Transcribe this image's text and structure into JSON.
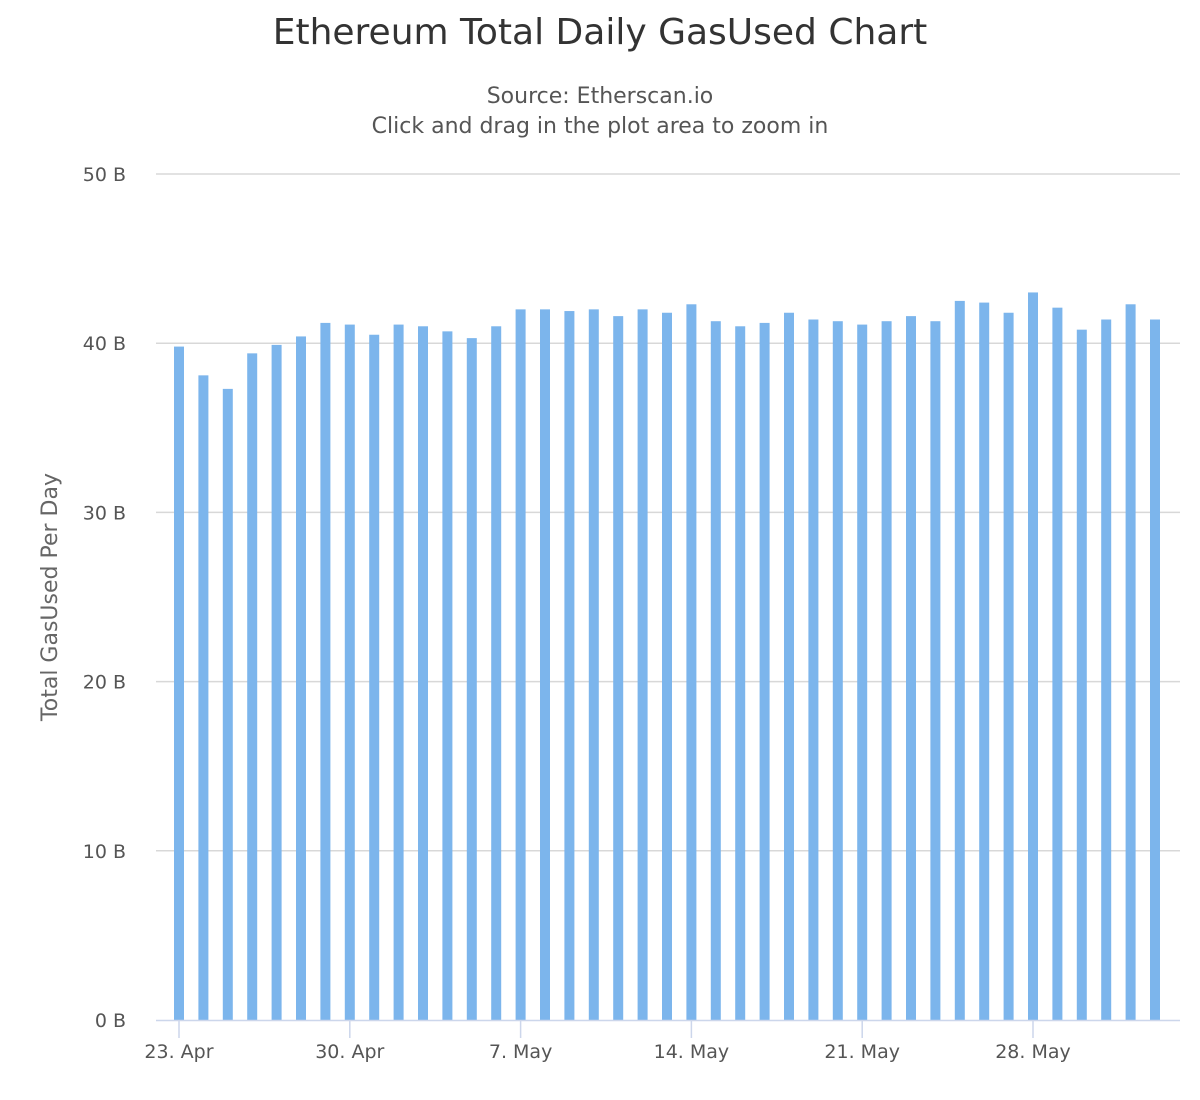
{
  "chart_data": {
    "type": "bar",
    "title": "Ethereum Total Daily GasUsed Chart",
    "subtitle": "Source: Etherscan.io",
    "subtitle_hint": "Click and drag in the plot area to zoom in",
    "ylabel": "Total GasUsed Per Day",
    "xlabel": "",
    "ylim": [
      0,
      50
    ],
    "y_unit_suffix": " B",
    "y_ticks": [
      "0 B",
      "10 B",
      "20 B",
      "30 B",
      "40 B",
      "50 B"
    ],
    "y_tick_values": [
      0,
      10,
      20,
      30,
      40,
      50
    ],
    "x_ticks": [
      "23. Apr",
      "30. Apr",
      "7. May",
      "14. May",
      "21. May",
      "28. May"
    ],
    "x_tick_indices": [
      0,
      7,
      14,
      21,
      28,
      35
    ],
    "bar_color": "#7cb5ec",
    "grid": true,
    "categories": [
      "23 Apr",
      "24 Apr",
      "25 Apr",
      "26 Apr",
      "27 Apr",
      "28 Apr",
      "29 Apr",
      "30 Apr",
      "1 May",
      "2 May",
      "3 May",
      "4 May",
      "5 May",
      "6 May",
      "7 May",
      "8 May",
      "9 May",
      "10 May",
      "11 May",
      "12 May",
      "13 May",
      "14 May",
      "15 May",
      "16 May",
      "17 May",
      "18 May",
      "19 May",
      "20 May",
      "21 May",
      "22 May",
      "23 May",
      "24 May",
      "25 May",
      "26 May",
      "27 May",
      "28 May",
      "29 May",
      "30 May",
      "31 May",
      "1 Jun",
      "2 Jun"
    ],
    "values": [
      39.8,
      38.1,
      37.3,
      39.4,
      39.9,
      40.4,
      41.2,
      41.1,
      40.5,
      41.1,
      41.0,
      40.7,
      40.3,
      41.0,
      42.0,
      42.0,
      41.9,
      42.0,
      41.6,
      42.0,
      41.8,
      42.3,
      41.3,
      41.0,
      41.2,
      41.8,
      41.4,
      41.3,
      41.1,
      41.3,
      41.6,
      41.3,
      42.5,
      42.4,
      41.8,
      43.0,
      42.1,
      40.8,
      41.4,
      42.3,
      41.4
    ]
  }
}
